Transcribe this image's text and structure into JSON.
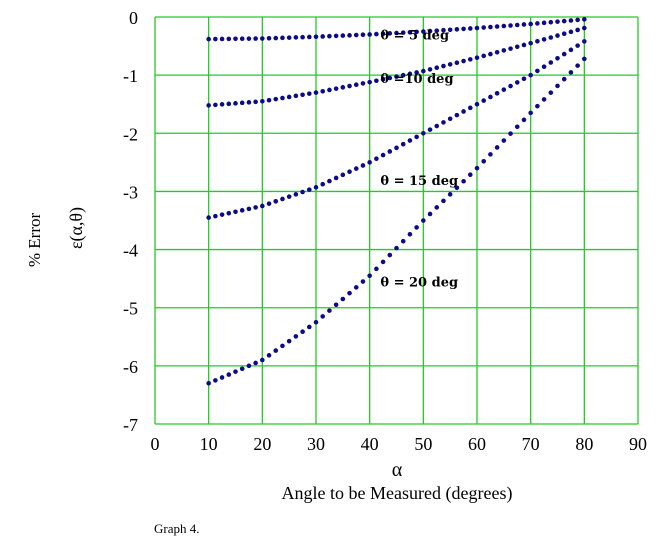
{
  "chart_data": {
    "type": "scatter",
    "title": "",
    "caption": "Graph 4.",
    "xlabel_symbol": "α",
    "xlabel": "Angle to be Measured (degrees)",
    "ylabel": "% Error",
    "ylabel_symbol": "ε(α,θ)",
    "xlim": [
      0,
      90
    ],
    "ylim": [
      -7,
      0
    ],
    "x_ticks": [
      "0",
      "10",
      "20",
      "30",
      "40",
      "50",
      "60",
      "70",
      "80",
      "90"
    ],
    "y_ticks": [
      "0",
      "-1",
      "-2",
      "-3",
      "-4",
      "-5",
      "-6",
      "-7"
    ],
    "grid": true,
    "grid_color": "#22cc22",
    "marker_color": "#0b0b8a",
    "series": [
      {
        "name": "θ = 5 deg",
        "x": [
          10,
          20,
          30,
          40,
          50,
          60,
          70,
          80
        ],
        "y": [
          -0.38,
          -0.37,
          -0.34,
          -0.3,
          -0.25,
          -0.19,
          -0.12,
          -0.04
        ]
      },
      {
        "name": "θ =10 deg",
        "x": [
          10,
          20,
          30,
          40,
          50,
          60,
          70,
          80
        ],
        "y": [
          -1.52,
          -1.45,
          -1.3,
          -1.12,
          -0.93,
          -0.7,
          -0.45,
          -0.19
        ]
      },
      {
        "name": "θ = 15 deg",
        "x": [
          10,
          20,
          30,
          40,
          50,
          60,
          70,
          80
        ],
        "y": [
          -3.45,
          -3.25,
          -2.93,
          -2.5,
          -2.0,
          -1.5,
          -1.0,
          -0.42
        ]
      },
      {
        "name": "θ = 20 deg",
        "x": [
          10,
          20,
          30,
          40,
          50,
          60,
          70,
          80
        ],
        "y": [
          -6.3,
          -5.9,
          -5.25,
          -4.45,
          -3.5,
          -2.6,
          -1.65,
          -0.72
        ]
      }
    ]
  }
}
